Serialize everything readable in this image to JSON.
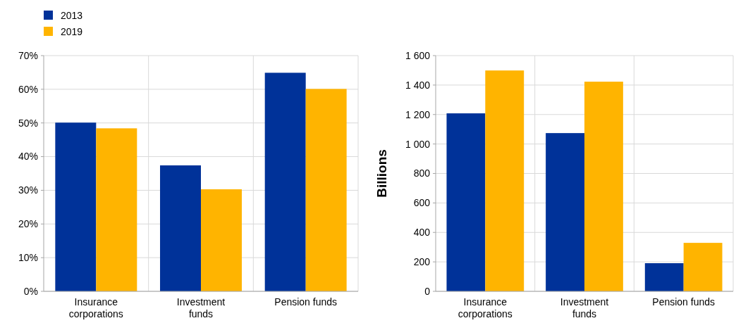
{
  "chart_data": [
    {
      "type": "bar",
      "categories": [
        "Insurance corporations",
        "Investment funds",
        "Pension funds"
      ],
      "series": [
        {
          "name": "2013",
          "color": "#003299",
          "values": [
            50.1,
            37.4,
            64.9
          ]
        },
        {
          "name": "2019",
          "color": "#ffb400",
          "values": [
            48.4,
            30.3,
            60.1
          ]
        }
      ],
      "ylim": [
        0,
        70
      ],
      "yticks": [
        {
          "value": 0,
          "label": "0%"
        },
        {
          "value": 10,
          "label": "10%"
        },
        {
          "value": 20,
          "label": "20%"
        },
        {
          "value": 30,
          "label": "30%"
        },
        {
          "value": 40,
          "label": "40%"
        },
        {
          "value": 50,
          "label": "50%"
        },
        {
          "value": 60,
          "label": "60%"
        },
        {
          "value": 70,
          "label": "70%"
        }
      ],
      "grid": true,
      "legend": "top left"
    },
    {
      "type": "bar",
      "categories": [
        "Insurance corporations",
        "Investment funds",
        "Pension funds"
      ],
      "series": [
        {
          "color": "#003299",
          "values": [
            1208,
            1074,
            191
          ]
        },
        {
          "color": "#ffb400",
          "values": [
            1499,
            1423,
            329
          ]
        }
      ],
      "ylabel": "Billions",
      "ylim": [
        0,
        1600
      ],
      "yticks": [
        0,
        200,
        400,
        600,
        800,
        {
          "value": 1000,
          "label": "1 000"
        },
        {
          "value": 1200,
          "label": "1 200"
        },
        {
          "value": 1400,
          "label": "1 400"
        },
        {
          "value": 1600,
          "label": "1 600"
        }
      ],
      "grid": true
    }
  ]
}
